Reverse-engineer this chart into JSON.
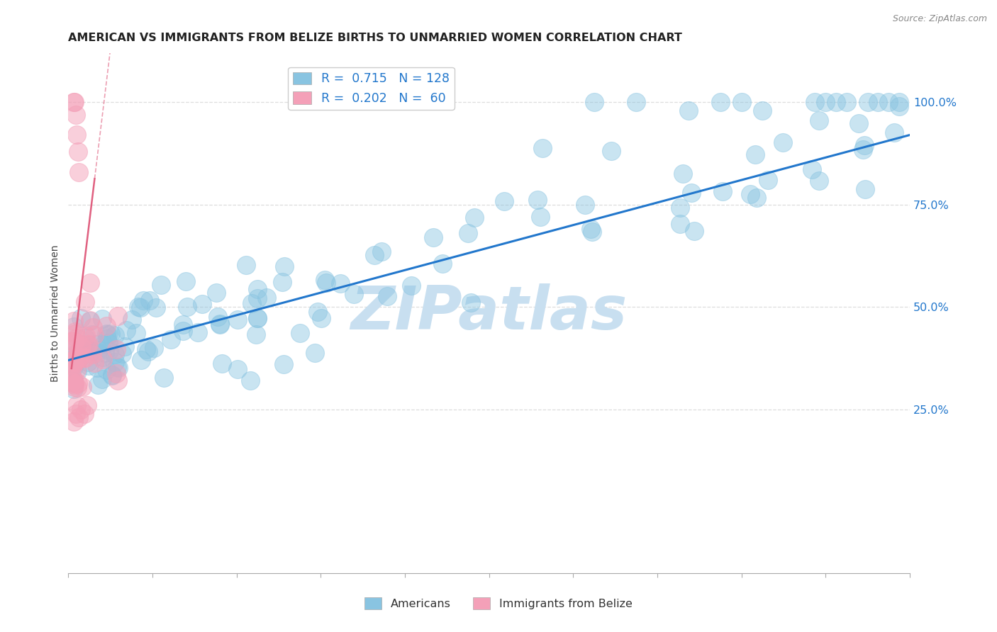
{
  "title": "AMERICAN VS IMMIGRANTS FROM BELIZE BIRTHS TO UNMARRIED WOMEN CORRELATION CHART",
  "source": "Source: ZipAtlas.com",
  "ylabel": "Births to Unmarried Women",
  "xmin": 0.0,
  "xmax": 0.8,
  "ymin": -0.15,
  "ymax": 1.12,
  "yticks": [
    0.25,
    0.5,
    0.75,
    1.0
  ],
  "ytick_labels": [
    "25.0%",
    "50.0%",
    "75.0%",
    "100.0%"
  ],
  "blue_R": 0.715,
  "blue_N": 128,
  "pink_R": 0.202,
  "pink_N": 60,
  "blue_color": "#89c4e1",
  "pink_color": "#f4a0b8",
  "trend_blue_color": "#2277cc",
  "trend_pink_color": "#e06080",
  "watermark": "ZIPatlas",
  "watermark_color": "#c8dff0",
  "grid_color": "#dddddd",
  "axis_color": "#aaaaaa",
  "label_color": "#2277cc",
  "title_color": "#222222"
}
